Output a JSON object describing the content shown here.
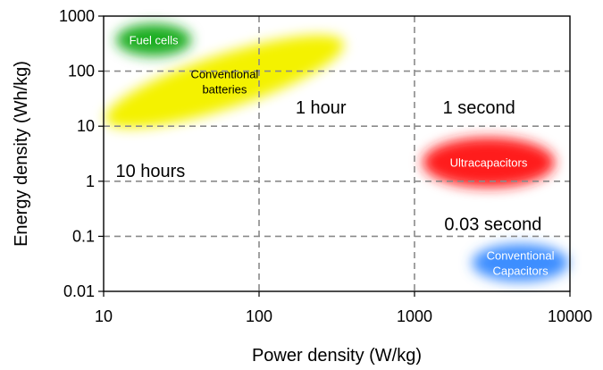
{
  "chart_data": {
    "type": "scatter",
    "title": "",
    "xlabel": "Power density (W/kg)",
    "ylabel": "Energy density (Wh/kg)",
    "x_scale": "log",
    "y_scale": "log",
    "xlim": [
      10,
      10000
    ],
    "ylim": [
      0.01,
      1000
    ],
    "x_ticks": [
      "10",
      "100",
      "1000",
      "10000"
    ],
    "y_ticks": [
      "0.01",
      "0.1",
      "1",
      "10",
      "100",
      "1000"
    ],
    "grid": "dashed",
    "regions": [
      {
        "name": "Fuel cells",
        "lines": [
          "Fuel cells"
        ],
        "center": [
          21,
          370
        ],
        "color": "#1fae22",
        "text_color": "#ffffff"
      },
      {
        "name": "Conventional batteries",
        "lines": [
          "Conventional",
          "batteries"
        ],
        "center": [
          60,
          65
        ],
        "color": "#f4f200",
        "text_color": "#000000"
      },
      {
        "name": "Ultracapacitors",
        "lines": [
          "Ultracapacitors"
        ],
        "center": [
          3000,
          2.2
        ],
        "color": "#ff1a1a",
        "text_color": "#ffffff"
      },
      {
        "name": "Conventional Capacitors",
        "lines": [
          "Conventional",
          "Capacitors"
        ],
        "center": [
          4800,
          0.033
        ],
        "color": "#3d8eff",
        "text_color": "#ffffff"
      }
    ],
    "annotations": [
      {
        "text": "10 hours",
        "x": 20,
        "y": 1.2
      },
      {
        "text": "1 hour",
        "x": 250,
        "y": 17
      },
      {
        "text": "1 second",
        "x": 2600,
        "y": 17
      },
      {
        "text": "0.03 second",
        "x": 3200,
        "y": 0.13
      }
    ]
  }
}
